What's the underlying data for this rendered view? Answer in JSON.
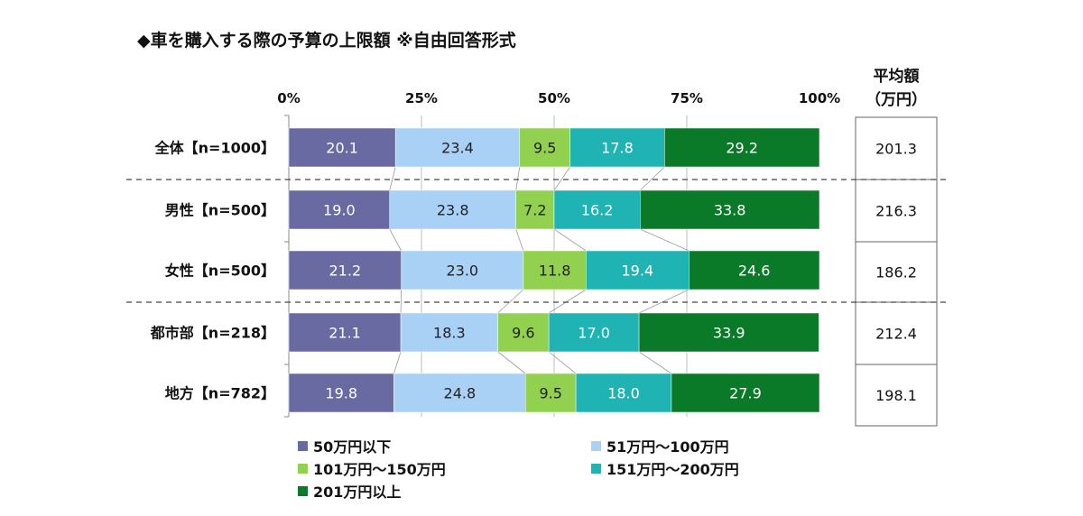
{
  "chart_data": {
    "type": "bar",
    "orientation": "horizontal",
    "stacked": true,
    "percent": true,
    "title": "◆車を購入する際の予算の上限額 ※自由回答形式",
    "xticks": [
      "0%",
      "25%",
      "50%",
      "75%",
      "100%"
    ],
    "xlim": [
      0,
      100
    ],
    "categories": [
      "全体【n=1000】",
      "男性【n=500】",
      "女性【n=500】",
      "都市部【n=218】",
      "地方【n=782】"
    ],
    "series": [
      {
        "name": "50万円以下",
        "color": "#6a6aa3",
        "values": [
          20.1,
          19.0,
          21.2,
          21.1,
          19.8
        ]
      },
      {
        "name": "51万円～100万円",
        "color": "#a9d0f5",
        "values": [
          23.4,
          23.8,
          23.0,
          18.3,
          24.8
        ]
      },
      {
        "name": "101万円～150万円",
        "color": "#92d050",
        "values": [
          9.5,
          7.2,
          11.8,
          9.6,
          9.5
        ]
      },
      {
        "name": "151万円～200万円",
        "color": "#1fb3b3",
        "values": [
          17.8,
          16.2,
          19.4,
          17.0,
          18.0
        ]
      },
      {
        "name": "201万円以上",
        "color": "#0a7a28",
        "values": [
          29.2,
          33.8,
          24.6,
          33.9,
          27.9
        ]
      }
    ],
    "label_colors": [
      "#ffffff",
      "#222222",
      "#222222",
      "#ffffff",
      "#ffffff"
    ],
    "average": {
      "header": [
        "平均額",
        "（万円）"
      ],
      "values": [
        "201.3",
        "216.3",
        "186.2",
        "212.4",
        "198.1"
      ]
    },
    "dividers_after_row": [
      0,
      2
    ],
    "grid": true
  }
}
